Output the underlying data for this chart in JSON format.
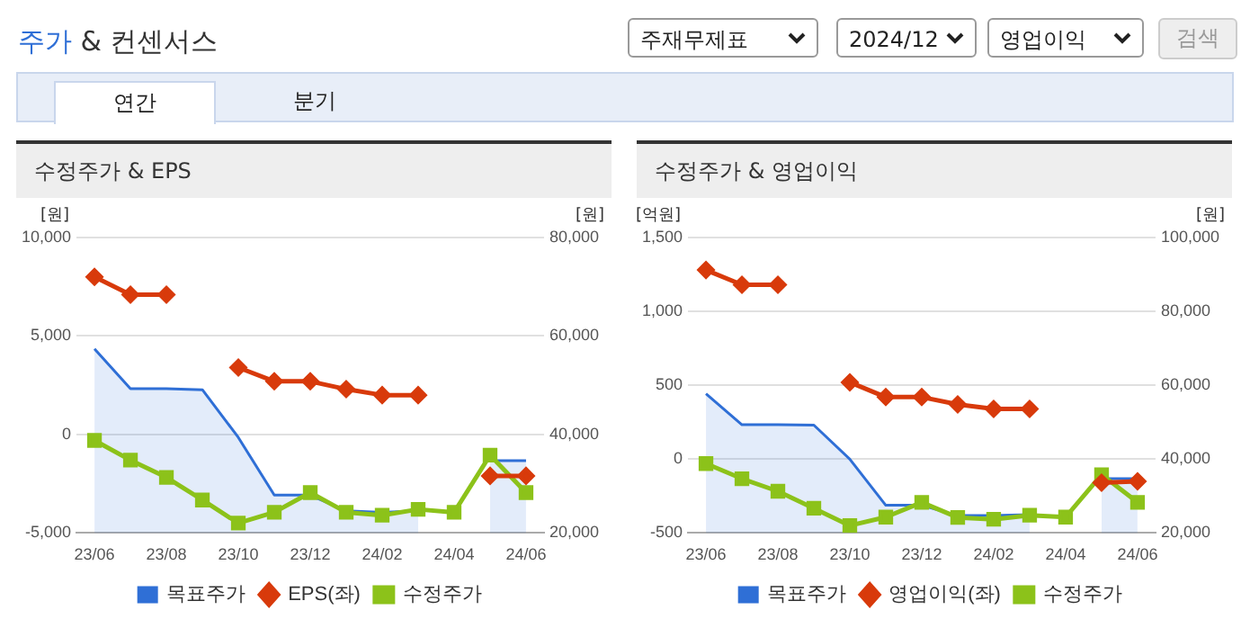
{
  "chart_data": [
    {
      "type": "other",
      "title": "주가 & 컨센서스",
      "annotations": [
        "주재무제표",
        "2024/12",
        "영업이익",
        "검색",
        "연간",
        "분기"
      ]
    },
    {
      "type": "line",
      "title": "수정주가 & EPS",
      "ylabel": "[원]",
      "y2label": "[원]",
      "categories": [
        "23/06",
        null,
        "23/08",
        null,
        "23/10",
        null,
        "23/12",
        null,
        "24/02",
        null,
        "24/04",
        null,
        "24/06"
      ],
      "series": [
        {
          "name": "목표주가",
          "type": "area",
          "axis": "y2",
          "color": "#2f6fd6",
          "marker": "none",
          "values": [
            57400,
            49300,
            49300,
            49100,
            39400,
            27700,
            27700,
            24500,
            24200,
            24500,
            null,
            34700,
            34700
          ]
        },
        {
          "name": "EPS(좌)",
          "type": "line",
          "color": "#d83a0b",
          "marker": "diamond",
          "values": [
            8000,
            7100,
            7100,
            null,
            3400,
            2700,
            2700,
            2300,
            2000,
            2000,
            null,
            -2100,
            -2100
          ]
        },
        {
          "name": "수정주가",
          "type": "line",
          "axis": "y2",
          "color": "#8cc21a",
          "marker": "square",
          "values": [
            38800,
            34800,
            31300,
            26700,
            22000,
            24200,
            28200,
            24200,
            23600,
            24800,
            24200,
            35800,
            28200
          ]
        }
      ],
      "ylim": [
        -5000,
        10000
      ],
      "yticks": [
        {
          "value": -5000,
          "label": "-5,000"
        },
        0,
        {
          "value": 5000,
          "label": "5,000"
        },
        {
          "value": 10000,
          "label": "10,000"
        }
      ],
      "y2lim": [
        20000,
        80000
      ],
      "y2ticks": [
        {
          "value": 20000,
          "label": "20,000"
        },
        {
          "value": 40000,
          "label": "40,000"
        },
        {
          "value": 60000,
          "label": "60,000"
        },
        {
          "value": 80000,
          "label": "80,000"
        }
      ],
      "grid": "y",
      "legend": "bottom"
    },
    {
      "type": "line",
      "title": "수정주가 & 영업이익",
      "ylabel": "[억원]",
      "y2label": "[원]",
      "categories": [
        "23/06",
        null,
        "23/08",
        null,
        "23/10",
        null,
        "23/12",
        null,
        "24/02",
        null,
        "24/04",
        null,
        "24/06"
      ],
      "series": [
        {
          "name": "목표주가",
          "type": "area",
          "axis": "y2",
          "color": "#2f6fd6",
          "marker": "none",
          "values": [
            57700,
            49300,
            49300,
            49200,
            40000,
            27500,
            27500,
            24700,
            24700,
            25000,
            null,
            34700,
            34700
          ]
        },
        {
          "name": "영업이익(좌)",
          "type": "line",
          "color": "#d83a0b",
          "marker": "diamond",
          "values": [
            1280,
            1180,
            1180,
            null,
            520,
            420,
            420,
            370,
            340,
            340,
            null,
            -160,
            -150
          ]
        },
        {
          "name": "수정주가",
          "type": "line",
          "axis": "y2",
          "color": "#8cc21a",
          "marker": "square",
          "values": [
            38800,
            34700,
            31300,
            26700,
            22000,
            24300,
            28300,
            24200,
            23700,
            24800,
            24300,
            35800,
            28300
          ]
        }
      ],
      "ylim": [
        -500,
        1500
      ],
      "yticks": [
        -500,
        0,
        500,
        {
          "value": 1000,
          "label": "1,000"
        },
        {
          "value": 1500,
          "label": "1,500"
        }
      ],
      "y2lim": [
        20000,
        100000
      ],
      "y2ticks": [
        {
          "value": 20000,
          "label": "20,000"
        },
        {
          "value": 40000,
          "label": "40,000"
        },
        {
          "value": 60000,
          "label": "60,000"
        },
        {
          "value": 80000,
          "label": "80,000"
        },
        {
          "value": 100000,
          "label": "100,000"
        }
      ],
      "grid": "y",
      "legend": "bottom"
    }
  ]
}
